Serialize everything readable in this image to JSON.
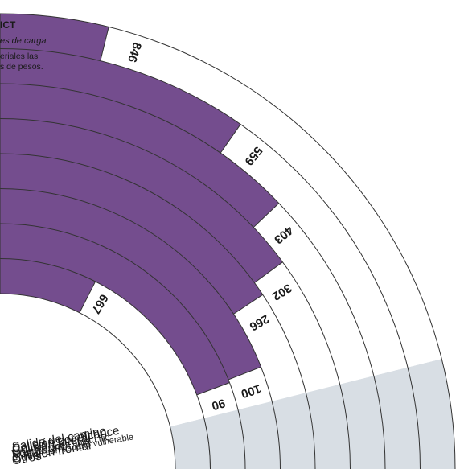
{
  "header": {
    "title": "ICT",
    "subtitle": "es de carga",
    "text_lines": [
      "eriales las",
      "s de pesos."
    ]
  },
  "colors": {
    "accent": "#744d8e",
    "band": "#d8dee4",
    "stroke": "#333333",
    "text": "#1a1a1a"
  },
  "chart_data": {
    "type": "radial-bar",
    "title": "",
    "categories": [
      "Salida del camino",
      "Colisión por alcance",
      "Colisión lateral",
      "Colisión contra objeto fijo",
      "Volcadura",
      "Colisión con usuario vulnerable",
      "Colisión frontal",
      "Otros"
    ],
    "values": [
      846,
      559,
      403,
      302,
      266,
      100,
      90,
      667
    ],
    "value_labels": [
      "846",
      "559",
      "403",
      "302",
      "266",
      "100",
      "90",
      "667"
    ]
  }
}
